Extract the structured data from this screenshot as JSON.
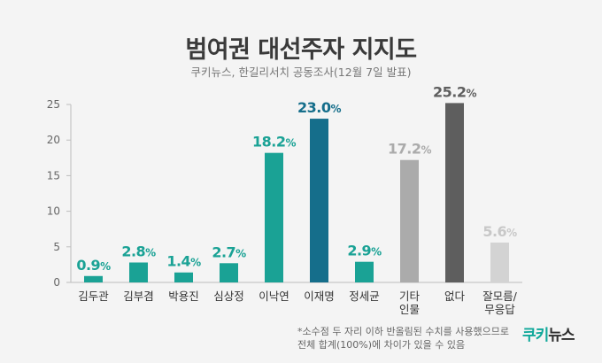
{
  "title": "범여권 대선주자 지지도",
  "subtitle": "쿠키뉴스, 한길리서치 공동조사(12월 7일 발표)",
  "footnote_line1": "*소수점 두 자리 이하 반올림된 수치를 사용했으므로",
  "footnote_line2": "전체 합계(100%)에 차이가 있을 수 있음",
  "logo_text": "쿠키뉴스",
  "chart_data": {
    "type": "bar",
    "title": "범여권 대선주자 지지도",
    "subtitle": "쿠키뉴스, 한길리서치 공동조사(12월 7일 발표)",
    "xlabel": "",
    "ylabel": "",
    "ylim": [
      0,
      25
    ],
    "yticks": [
      0,
      5,
      10,
      15,
      20,
      25
    ],
    "grid": false,
    "legend": "none",
    "categories": [
      [
        "김두관"
      ],
      [
        "김부겸"
      ],
      [
        "박용진"
      ],
      [
        "심상정"
      ],
      [
        "이낙연"
      ],
      [
        "이재명"
      ],
      [
        "정세균"
      ],
      [
        "기타",
        "인물"
      ],
      [
        "없다"
      ],
      [
        "잘모름/",
        "무응답"
      ]
    ],
    "values": [
      0.9,
      2.8,
      1.4,
      2.7,
      18.2,
      23.0,
      2.9,
      17.2,
      25.2,
      5.6
    ],
    "value_labels": [
      "0.9%",
      "2.8%",
      "1.4%",
      "2.7%",
      "18.2%",
      "23.0%",
      "2.9%",
      "17.2%",
      "25.2%",
      "5.6%"
    ],
    "bar_colors": [
      "#1aa295",
      "#1aa295",
      "#1aa295",
      "#1aa295",
      "#1aa295",
      "#156e8b",
      "#1aa295",
      "#ababab",
      "#5e5e5e",
      "#d3d3d3"
    ],
    "label_colors": [
      "#1aa295",
      "#1aa295",
      "#1aa295",
      "#1aa295",
      "#1aa295",
      "#156e8b",
      "#1aa295",
      "#ababab",
      "#5e5e5e",
      "#c8c8c8"
    ]
  }
}
